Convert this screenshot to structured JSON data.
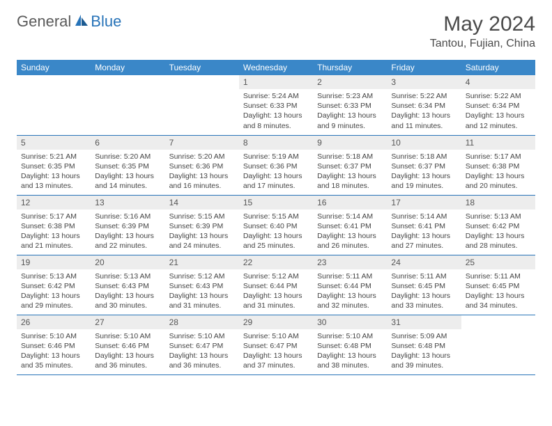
{
  "logo": {
    "part1": "General",
    "part2": "Blue"
  },
  "title": "May 2024",
  "location": "Tantou, Fujian, China",
  "colors": {
    "header_bg": "#3a87c8",
    "header_text": "#ffffff",
    "daynum_bg": "#ededed",
    "border": "#2773b8",
    "text": "#444444",
    "logo_gray": "#5a5a5a",
    "logo_blue": "#2773b8"
  },
  "dayNames": [
    "Sunday",
    "Monday",
    "Tuesday",
    "Wednesday",
    "Thursday",
    "Friday",
    "Saturday"
  ],
  "grid": {
    "firstWeekday": 3,
    "daysInMonth": 31
  },
  "days": {
    "1": {
      "sunrise": "5:24 AM",
      "sunset": "6:33 PM",
      "daylight": "13 hours and 8 minutes."
    },
    "2": {
      "sunrise": "5:23 AM",
      "sunset": "6:33 PM",
      "daylight": "13 hours and 9 minutes."
    },
    "3": {
      "sunrise": "5:22 AM",
      "sunset": "6:34 PM",
      "daylight": "13 hours and 11 minutes."
    },
    "4": {
      "sunrise": "5:22 AM",
      "sunset": "6:34 PM",
      "daylight": "13 hours and 12 minutes."
    },
    "5": {
      "sunrise": "5:21 AM",
      "sunset": "6:35 PM",
      "daylight": "13 hours and 13 minutes."
    },
    "6": {
      "sunrise": "5:20 AM",
      "sunset": "6:35 PM",
      "daylight": "13 hours and 14 minutes."
    },
    "7": {
      "sunrise": "5:20 AM",
      "sunset": "6:36 PM",
      "daylight": "13 hours and 16 minutes."
    },
    "8": {
      "sunrise": "5:19 AM",
      "sunset": "6:36 PM",
      "daylight": "13 hours and 17 minutes."
    },
    "9": {
      "sunrise": "5:18 AM",
      "sunset": "6:37 PM",
      "daylight": "13 hours and 18 minutes."
    },
    "10": {
      "sunrise": "5:18 AM",
      "sunset": "6:37 PM",
      "daylight": "13 hours and 19 minutes."
    },
    "11": {
      "sunrise": "5:17 AM",
      "sunset": "6:38 PM",
      "daylight": "13 hours and 20 minutes."
    },
    "12": {
      "sunrise": "5:17 AM",
      "sunset": "6:38 PM",
      "daylight": "13 hours and 21 minutes."
    },
    "13": {
      "sunrise": "5:16 AM",
      "sunset": "6:39 PM",
      "daylight": "13 hours and 22 minutes."
    },
    "14": {
      "sunrise": "5:15 AM",
      "sunset": "6:39 PM",
      "daylight": "13 hours and 24 minutes."
    },
    "15": {
      "sunrise": "5:15 AM",
      "sunset": "6:40 PM",
      "daylight": "13 hours and 25 minutes."
    },
    "16": {
      "sunrise": "5:14 AM",
      "sunset": "6:41 PM",
      "daylight": "13 hours and 26 minutes."
    },
    "17": {
      "sunrise": "5:14 AM",
      "sunset": "6:41 PM",
      "daylight": "13 hours and 27 minutes."
    },
    "18": {
      "sunrise": "5:13 AM",
      "sunset": "6:42 PM",
      "daylight": "13 hours and 28 minutes."
    },
    "19": {
      "sunrise": "5:13 AM",
      "sunset": "6:42 PM",
      "daylight": "13 hours and 29 minutes."
    },
    "20": {
      "sunrise": "5:13 AM",
      "sunset": "6:43 PM",
      "daylight": "13 hours and 30 minutes."
    },
    "21": {
      "sunrise": "5:12 AM",
      "sunset": "6:43 PM",
      "daylight": "13 hours and 31 minutes."
    },
    "22": {
      "sunrise": "5:12 AM",
      "sunset": "6:44 PM",
      "daylight": "13 hours and 31 minutes."
    },
    "23": {
      "sunrise": "5:11 AM",
      "sunset": "6:44 PM",
      "daylight": "13 hours and 32 minutes."
    },
    "24": {
      "sunrise": "5:11 AM",
      "sunset": "6:45 PM",
      "daylight": "13 hours and 33 minutes."
    },
    "25": {
      "sunrise": "5:11 AM",
      "sunset": "6:45 PM",
      "daylight": "13 hours and 34 minutes."
    },
    "26": {
      "sunrise": "5:10 AM",
      "sunset": "6:46 PM",
      "daylight": "13 hours and 35 minutes."
    },
    "27": {
      "sunrise": "5:10 AM",
      "sunset": "6:46 PM",
      "daylight": "13 hours and 36 minutes."
    },
    "28": {
      "sunrise": "5:10 AM",
      "sunset": "6:47 PM",
      "daylight": "13 hours and 36 minutes."
    },
    "29": {
      "sunrise": "5:10 AM",
      "sunset": "6:47 PM",
      "daylight": "13 hours and 37 minutes."
    },
    "30": {
      "sunrise": "5:10 AM",
      "sunset": "6:48 PM",
      "daylight": "13 hours and 38 minutes."
    },
    "31": {
      "sunrise": "5:09 AM",
      "sunset": "6:48 PM",
      "daylight": "13 hours and 39 minutes."
    }
  },
  "labels": {
    "sunrise": "Sunrise:",
    "sunset": "Sunset:",
    "daylight": "Daylight:"
  }
}
